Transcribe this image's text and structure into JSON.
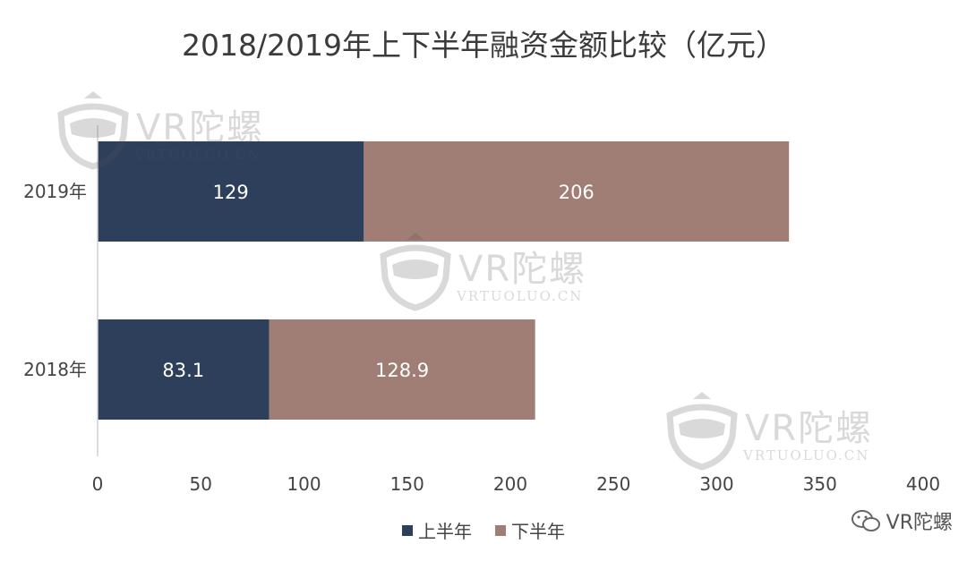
{
  "title": "2018/2019年上下半年融资金额比较（亿元）",
  "chart_data": {
    "type": "bar",
    "orientation": "horizontal",
    "stacked": true,
    "categories": [
      "2019年",
      "2018年"
    ],
    "series": [
      {
        "name": "上半年",
        "values": [
          129,
          83.1
        ],
        "color": "#2e3f5c",
        "labels": [
          "129",
          "83.1"
        ]
      },
      {
        "name": "下半年",
        "values": [
          206,
          128.9
        ],
        "color": "#a07e76",
        "labels": [
          "206",
          "128.9"
        ]
      }
    ],
    "xlim": [
      0,
      400
    ],
    "xticks": [
      "0",
      "50",
      "100",
      "150",
      "200",
      "250",
      "300",
      "350",
      "400"
    ],
    "grid": false,
    "legend": "bottom"
  },
  "watermark": {
    "brand": "VR陀螺",
    "url": "VRTUOLUO.CN"
  },
  "source_badge": "VR陀螺"
}
